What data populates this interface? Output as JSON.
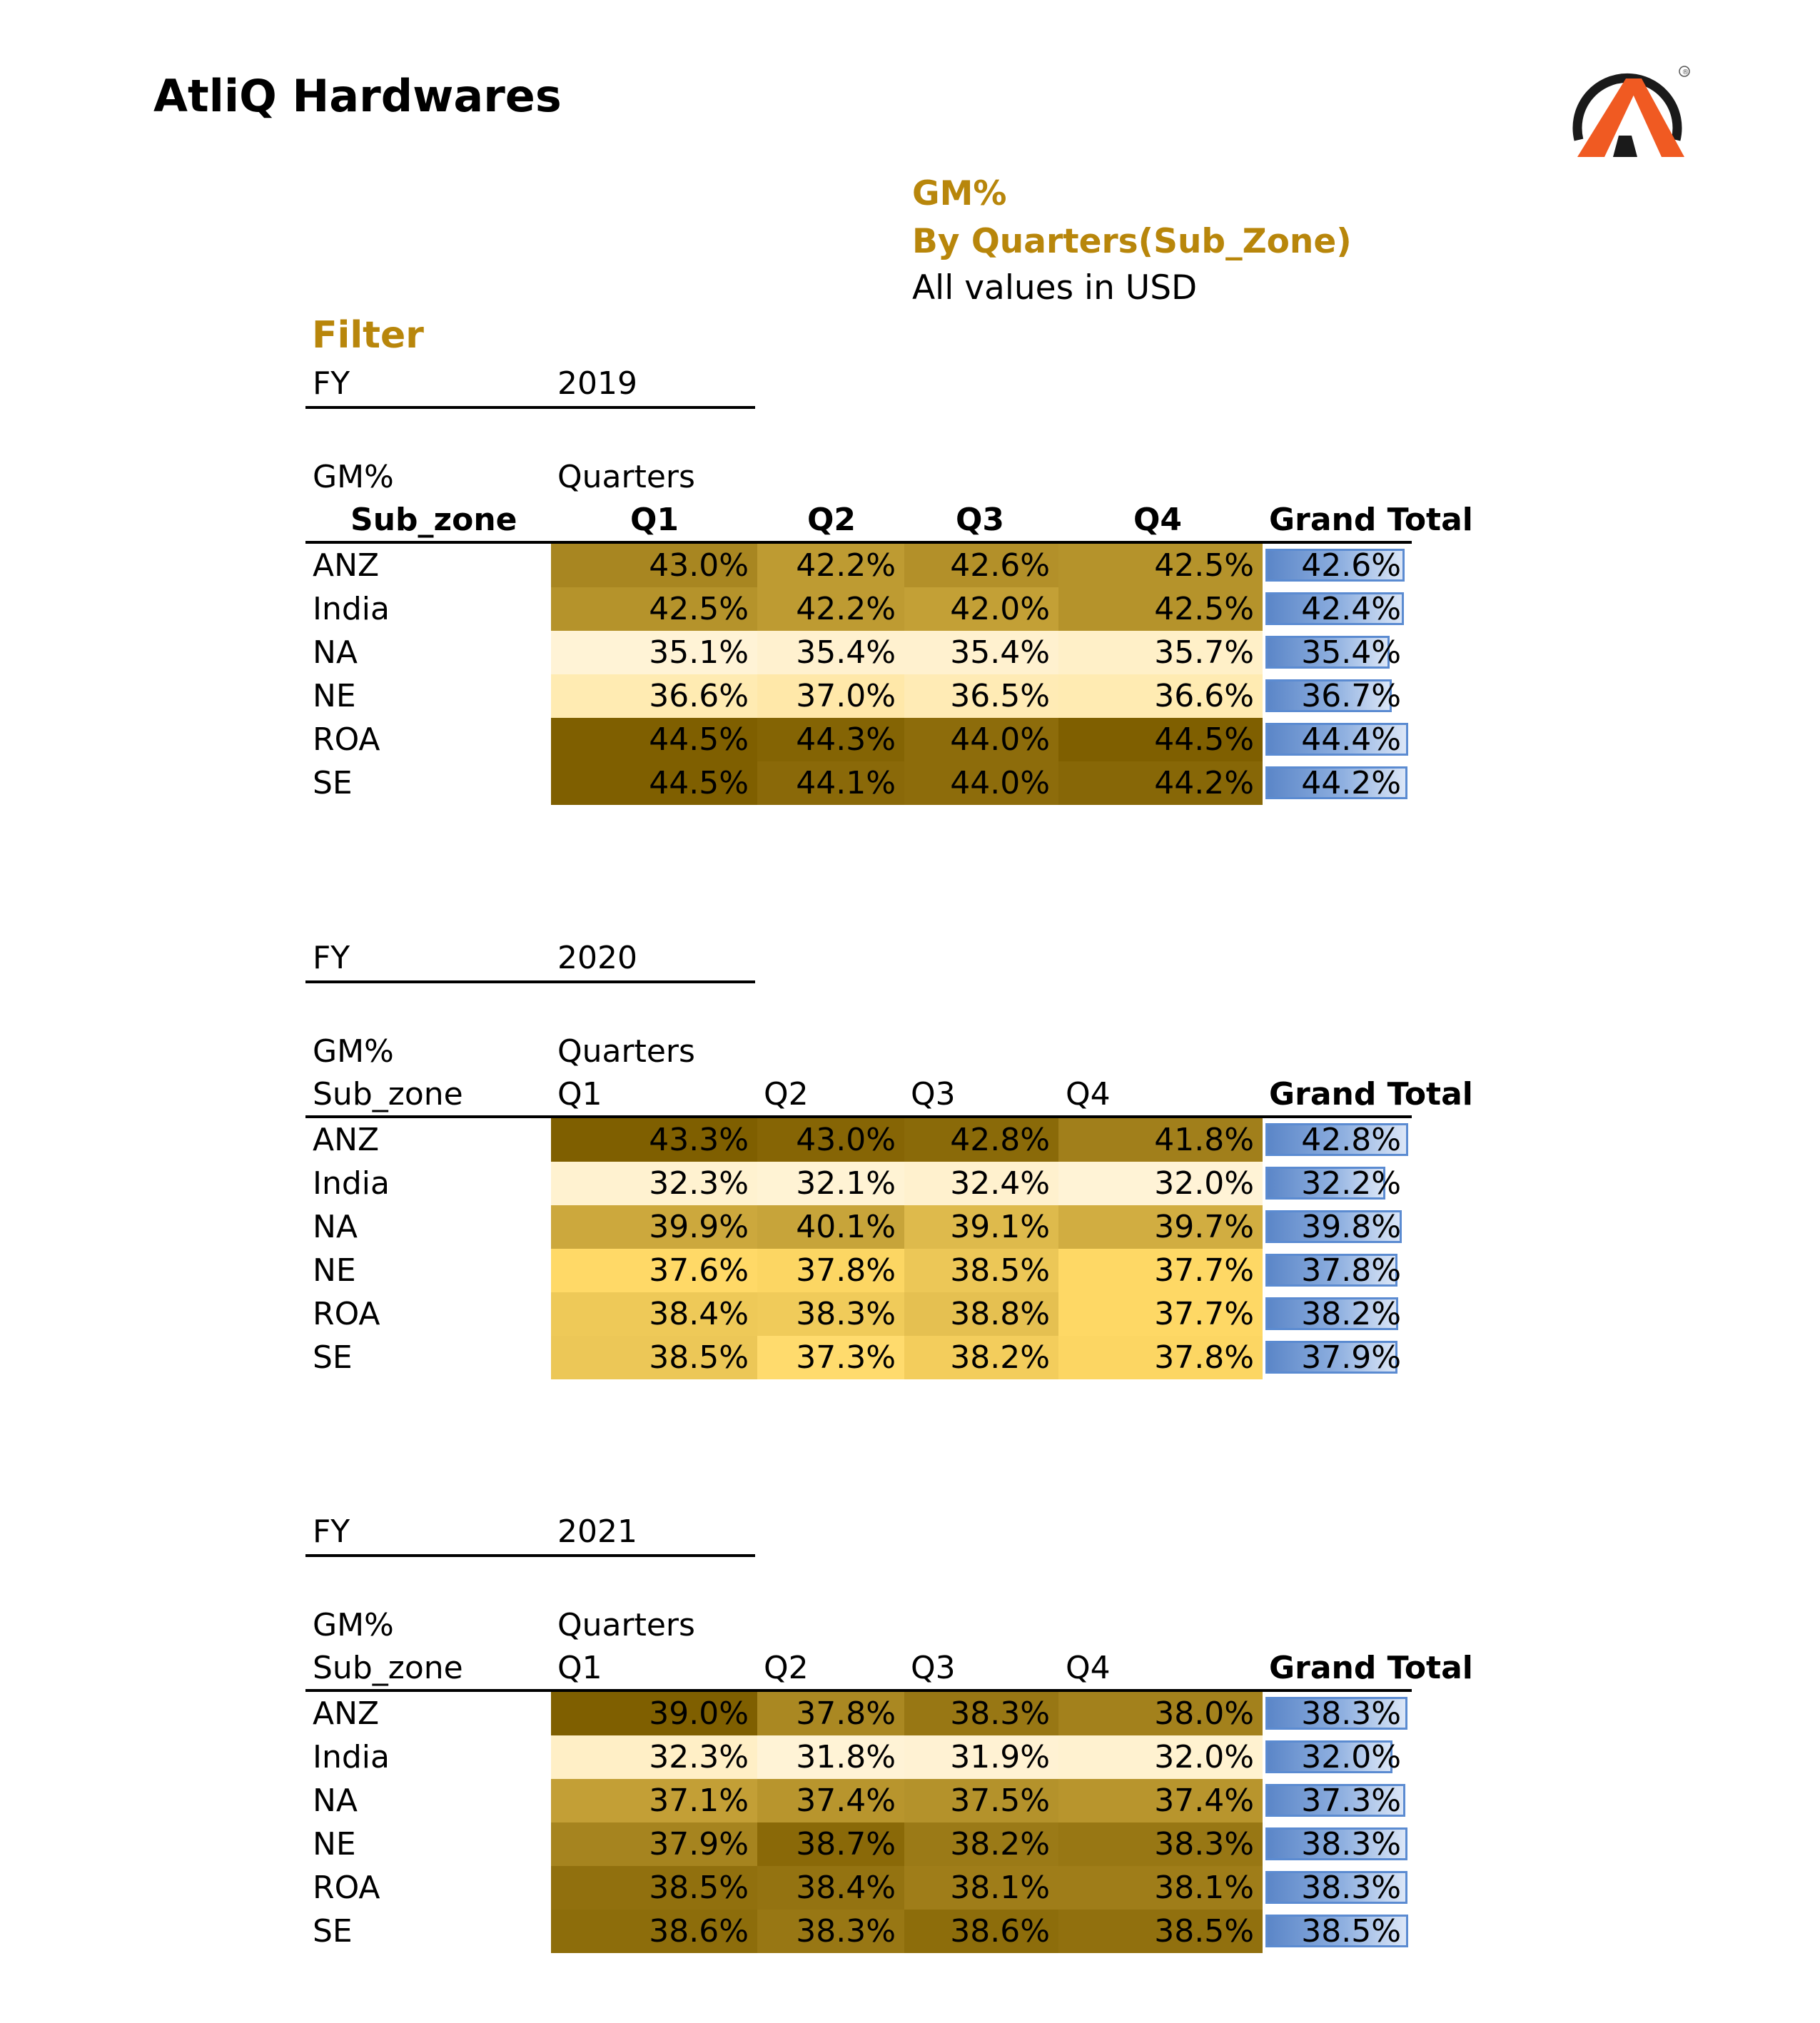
{
  "company": "AtliQ Hardwares",
  "logo": {
    "icon": "atliq-a-logo",
    "registered_mark": "®"
  },
  "report": {
    "title": "GM%",
    "subtitle": "By Quarters(Sub_Zone)",
    "note": "All values in USD"
  },
  "filter_label": "Filter",
  "colors": {
    "gold_text": "#b8860b",
    "heat_low": "#fff3d6",
    "heat_high": "#7f5f00",
    "databar": "#5b86c8"
  },
  "tables": [
    {
      "fy_label": "FY",
      "fy": "2019",
      "measure": "GM%",
      "column_field": "Quarters",
      "row_field": "Sub_zone",
      "columns": [
        "Q1",
        "Q2",
        "Q3",
        "Q4"
      ],
      "total_label": "Grand Total",
      "rows": [
        {
          "zone": "ANZ",
          "q": [
            "43.0%",
            "42.2%",
            "42.6%",
            "42.5%"
          ],
          "total": "42.6%"
        },
        {
          "zone": "India",
          "q": [
            "42.5%",
            "42.2%",
            "42.0%",
            "42.5%"
          ],
          "total": "42.4%"
        },
        {
          "zone": "NA",
          "q": [
            "35.1%",
            "35.4%",
            "35.4%",
            "35.7%"
          ],
          "total": "35.4%"
        },
        {
          "zone": "NE",
          "q": [
            "36.6%",
            "37.0%",
            "36.5%",
            "36.6%"
          ],
          "total": "36.7%"
        },
        {
          "zone": "ROA",
          "q": [
            "44.5%",
            "44.3%",
            "44.0%",
            "44.5%"
          ],
          "total": "44.4%"
        },
        {
          "zone": "SE",
          "q": [
            "44.5%",
            "44.1%",
            "44.0%",
            "44.2%"
          ],
          "total": "44.2%"
        }
      ]
    },
    {
      "fy_label": "FY",
      "fy": "2020",
      "measure": "GM%",
      "column_field": "Quarters",
      "row_field": "Sub_zone",
      "columns": [
        "Q1",
        "Q2",
        "Q3",
        "Q4"
      ],
      "total_label": "Grand Total",
      "rows": [
        {
          "zone": "ANZ",
          "q": [
            "43.3%",
            "43.0%",
            "42.8%",
            "41.8%"
          ],
          "total": "42.8%"
        },
        {
          "zone": "India",
          "q": [
            "32.3%",
            "32.1%",
            "32.4%",
            "32.0%"
          ],
          "total": "32.2%"
        },
        {
          "zone": "NA",
          "q": [
            "39.9%",
            "40.1%",
            "39.1%",
            "39.7%"
          ],
          "total": "39.8%"
        },
        {
          "zone": "NE",
          "q": [
            "37.6%",
            "37.8%",
            "38.5%",
            "37.7%"
          ],
          "total": "37.8%"
        },
        {
          "zone": "ROA",
          "q": [
            "38.4%",
            "38.3%",
            "38.8%",
            "37.7%"
          ],
          "total": "38.2%"
        },
        {
          "zone": "SE",
          "q": [
            "38.5%",
            "37.3%",
            "38.2%",
            "37.8%"
          ],
          "total": "37.9%"
        }
      ]
    },
    {
      "fy_label": "FY",
      "fy": "2021",
      "measure": "GM%",
      "column_field": "Quarters",
      "row_field": "Sub_zone",
      "columns": [
        "Q1",
        "Q2",
        "Q3",
        "Q4"
      ],
      "total_label": "Grand Total",
      "rows": [
        {
          "zone": "ANZ",
          "q": [
            "39.0%",
            "37.8%",
            "38.3%",
            "38.0%"
          ],
          "total": "38.3%"
        },
        {
          "zone": "India",
          "q": [
            "32.3%",
            "31.8%",
            "31.9%",
            "32.0%"
          ],
          "total": "32.0%"
        },
        {
          "zone": "NA",
          "q": [
            "37.1%",
            "37.4%",
            "37.5%",
            "37.4%"
          ],
          "total": "37.3%"
        },
        {
          "zone": "NE",
          "q": [
            "37.9%",
            "38.7%",
            "38.2%",
            "38.3%"
          ],
          "total": "38.3%"
        },
        {
          "zone": "ROA",
          "q": [
            "38.5%",
            "38.4%",
            "38.1%",
            "38.1%"
          ],
          "total": "38.3%"
        },
        {
          "zone": "SE",
          "q": [
            "38.6%",
            "38.3%",
            "38.6%",
            "38.5%"
          ],
          "total": "38.5%"
        }
      ]
    }
  ]
}
